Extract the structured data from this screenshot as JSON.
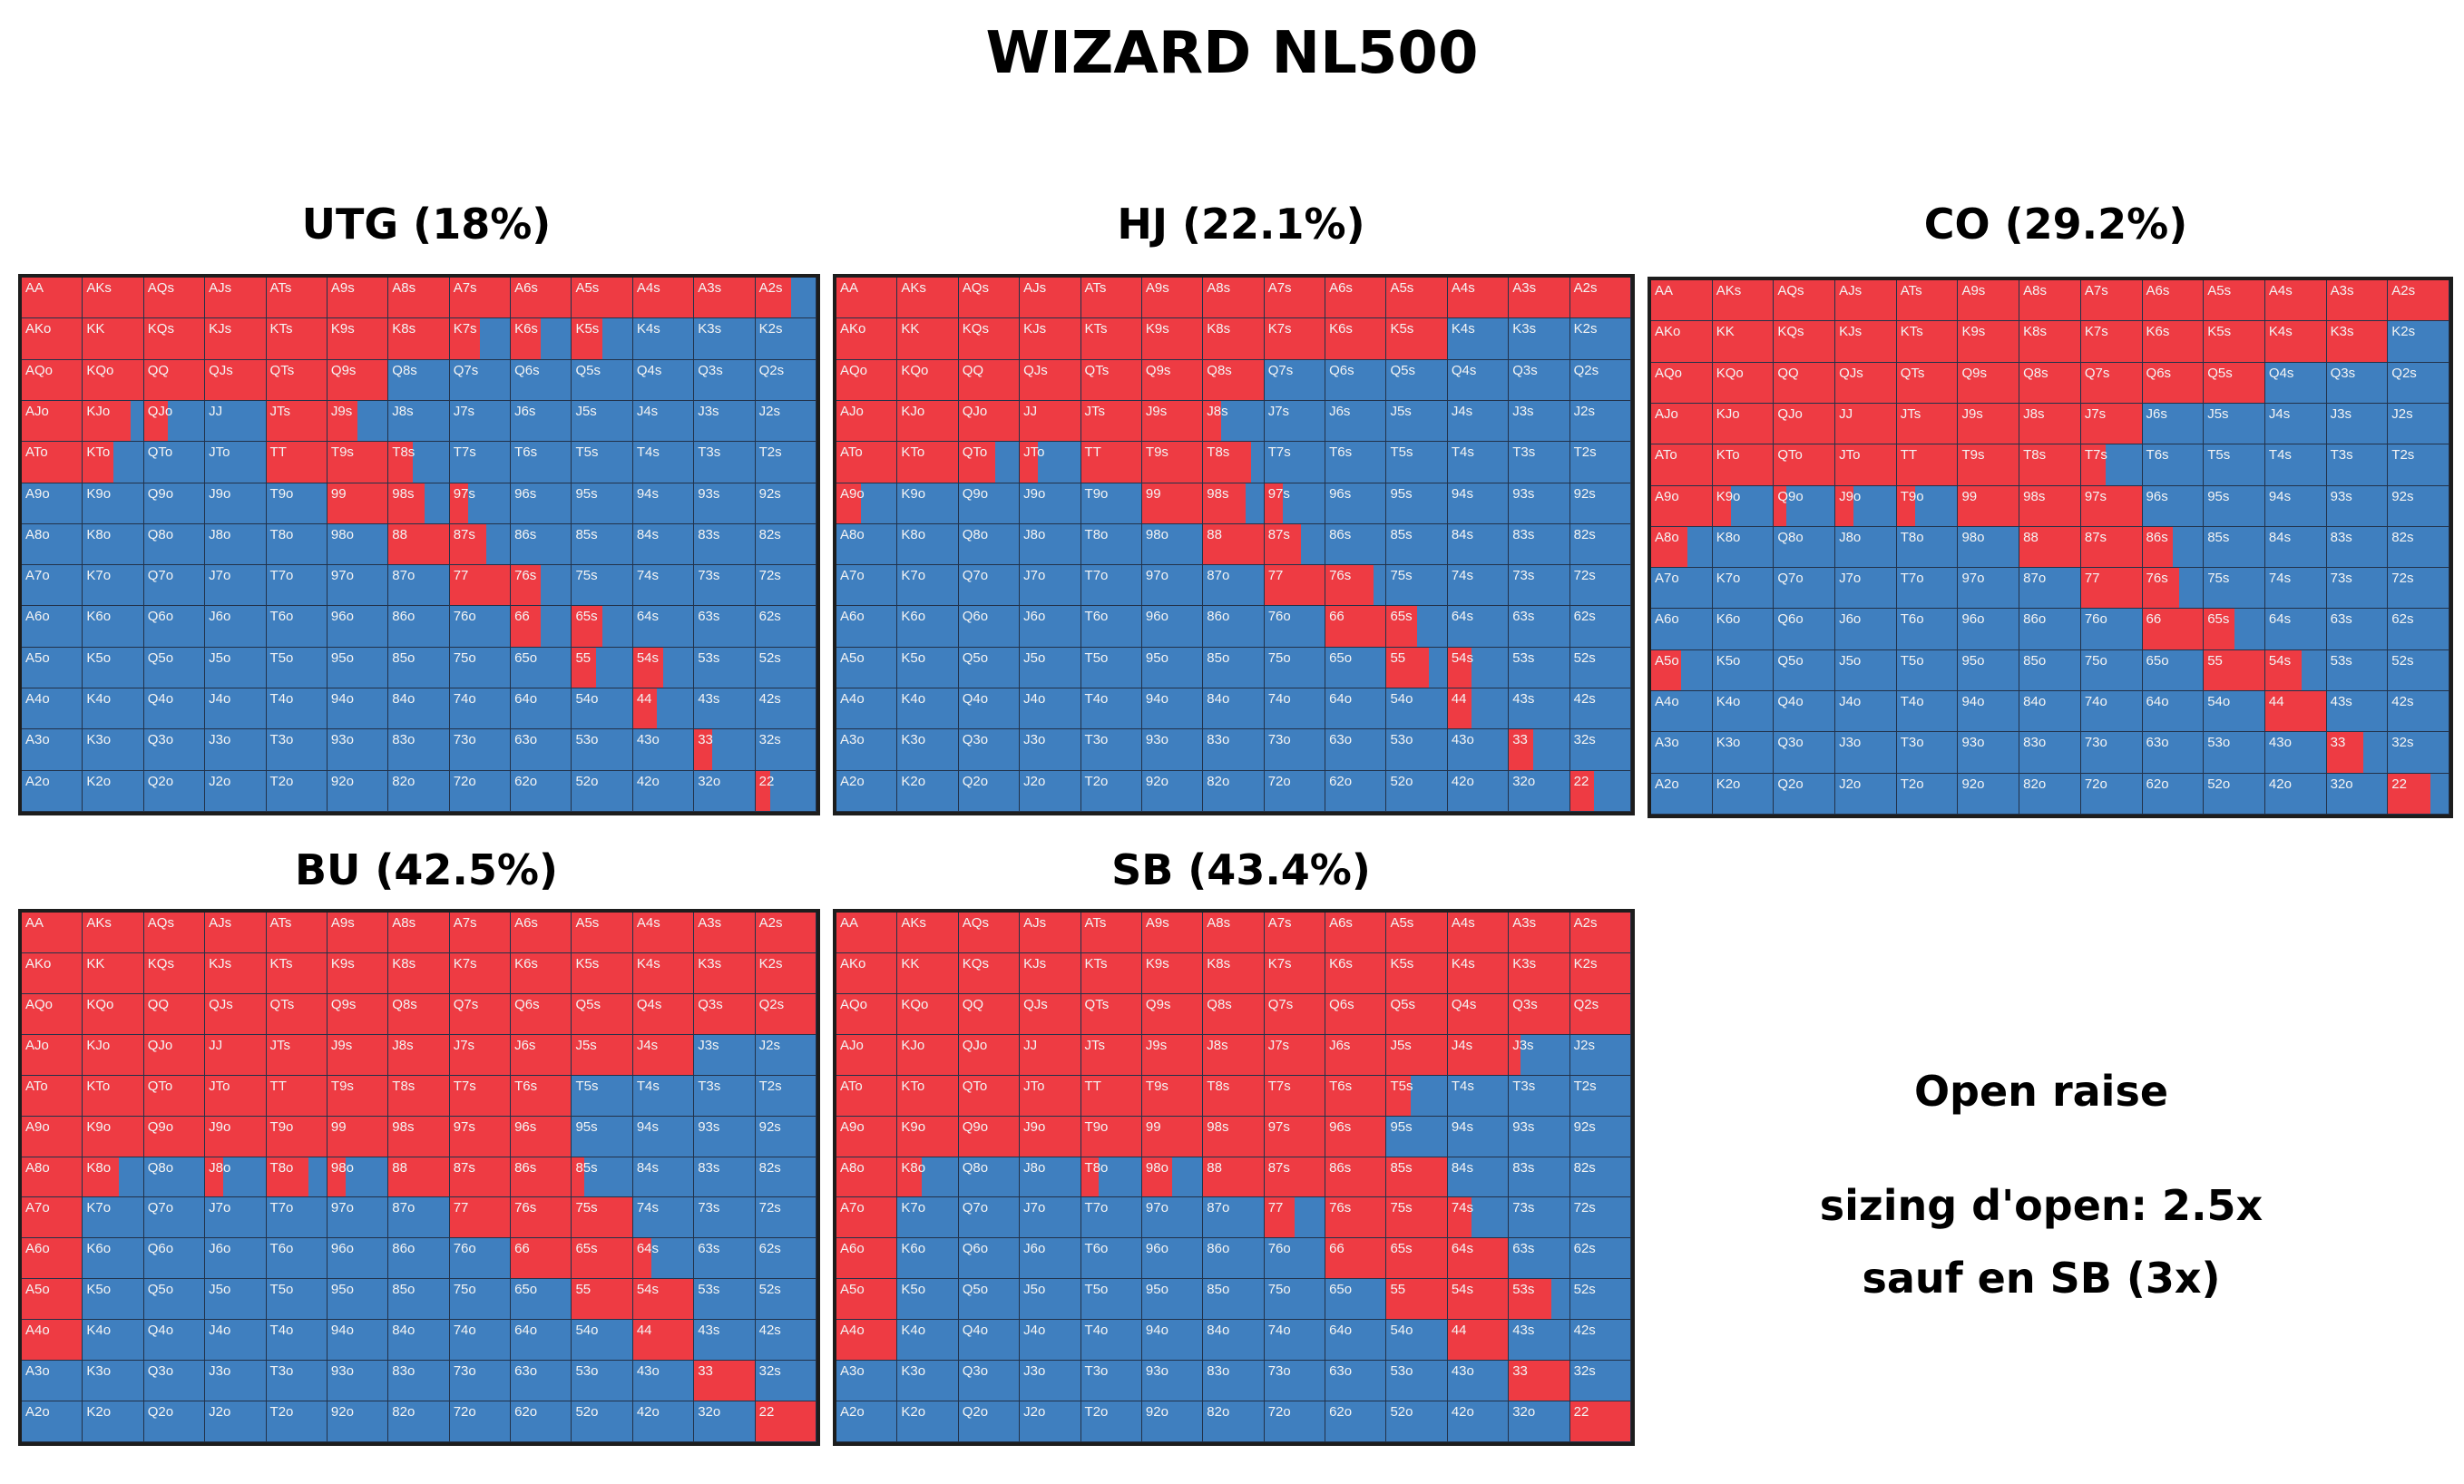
{
  "title": "WIZARD NL500",
  "colors": {
    "raise": "#ee3b43",
    "fold": "#3f7fbf",
    "border": "#1d1d1d"
  },
  "ranks": [
    "A",
    "K",
    "Q",
    "J",
    "T",
    "9",
    "8",
    "7",
    "6",
    "5",
    "4",
    "3",
    "2"
  ],
  "ranges": [
    {
      "label": "UTG (18%)",
      "raise_freq": [
        [
          1,
          1,
          1,
          1,
          1,
          1,
          1,
          1,
          1,
          1,
          1,
          1,
          0.6
        ],
        [
          1,
          1,
          1,
          1,
          1,
          1,
          1,
          0.5,
          0.5,
          0.5,
          0,
          0,
          0
        ],
        [
          1,
          1,
          1,
          1,
          1,
          1,
          0,
          0,
          0,
          0,
          0,
          0,
          0
        ],
        [
          1,
          0.8,
          0.4,
          0,
          1,
          0.5,
          0,
          0,
          0,
          0,
          0,
          0,
          0
        ],
        [
          1,
          0.5,
          0,
          0,
          1,
          1,
          0.4,
          0,
          0,
          0,
          0,
          0,
          0
        ],
        [
          0,
          0,
          0,
          0,
          0,
          1,
          0.6,
          0.3,
          0,
          0,
          0,
          0,
          0
        ],
        [
          0,
          0,
          0,
          0,
          0,
          0,
          1,
          0.6,
          0,
          0,
          0,
          0,
          0
        ],
        [
          0,
          0,
          0,
          0,
          0,
          0,
          0,
          1,
          0.5,
          0,
          0,
          0,
          0
        ],
        [
          0,
          0,
          0,
          0,
          0,
          0,
          0,
          0,
          0.5,
          0.5,
          0,
          0,
          0
        ],
        [
          0,
          0,
          0,
          0,
          0,
          0,
          0,
          0,
          0,
          0.4,
          0.5,
          0,
          0
        ],
        [
          0,
          0,
          0,
          0,
          0,
          0,
          0,
          0,
          0,
          0,
          0.4,
          0,
          0
        ],
        [
          0,
          0,
          0,
          0,
          0,
          0,
          0,
          0,
          0,
          0,
          0,
          0.3,
          0
        ],
        [
          0,
          0,
          0,
          0,
          0,
          0,
          0,
          0,
          0,
          0,
          0,
          0,
          0.25
        ]
      ]
    },
    {
      "label": "HJ (22.1%)",
      "raise_freq": [
        [
          1,
          1,
          1,
          1,
          1,
          1,
          1,
          1,
          1,
          1,
          1,
          1,
          1
        ],
        [
          1,
          1,
          1,
          1,
          1,
          1,
          1,
          1,
          1,
          1,
          0,
          0,
          0
        ],
        [
          1,
          1,
          1,
          1,
          1,
          1,
          1,
          0,
          0,
          0,
          0,
          0,
          0
        ],
        [
          1,
          1,
          1,
          1,
          1,
          1,
          0.3,
          0,
          0,
          0,
          0,
          0,
          0
        ],
        [
          1,
          1,
          0.6,
          0.3,
          1,
          1,
          0.8,
          0,
          0,
          0,
          0,
          0,
          0
        ],
        [
          0.4,
          0,
          0,
          0,
          0,
          1,
          0.7,
          0.3,
          0,
          0,
          0,
          0,
          0
        ],
        [
          0,
          0,
          0,
          0,
          0,
          0,
          1,
          0.6,
          0,
          0,
          0,
          0,
          0
        ],
        [
          0,
          0,
          0,
          0,
          0,
          0,
          0,
          1,
          0.8,
          0,
          0,
          0,
          0
        ],
        [
          0,
          0,
          0,
          0,
          0,
          0,
          0,
          0,
          1,
          0.5,
          0,
          0,
          0
        ],
        [
          0,
          0,
          0,
          0,
          0,
          0,
          0,
          0,
          0,
          0.7,
          0.4,
          0,
          0
        ],
        [
          0,
          0,
          0,
          0,
          0,
          0,
          0,
          0,
          0,
          0,
          0.4,
          0,
          0
        ],
        [
          0,
          0,
          0,
          0,
          0,
          0,
          0,
          0,
          0,
          0,
          0,
          0.4,
          0
        ],
        [
          0,
          0,
          0,
          0,
          0,
          0,
          0,
          0,
          0,
          0,
          0,
          0,
          0.4
        ]
      ]
    },
    {
      "label": "CO (29.2%)",
      "raise_freq": [
        [
          1,
          1,
          1,
          1,
          1,
          1,
          1,
          1,
          1,
          1,
          1,
          1,
          1
        ],
        [
          1,
          1,
          1,
          1,
          1,
          1,
          1,
          1,
          1,
          1,
          1,
          1,
          0
        ],
        [
          1,
          1,
          1,
          1,
          1,
          1,
          1,
          1,
          1,
          1,
          0,
          0,
          0
        ],
        [
          1,
          1,
          1,
          1,
          1,
          1,
          1,
          1,
          0,
          0,
          0,
          0,
          0
        ],
        [
          1,
          1,
          1,
          1,
          1,
          1,
          1,
          0.4,
          0,
          0,
          0,
          0,
          0
        ],
        [
          1,
          0.3,
          0.2,
          0.3,
          0.3,
          1,
          1,
          1,
          0,
          0,
          0,
          0,
          0
        ],
        [
          0.6,
          0,
          0,
          0,
          0,
          0,
          1,
          1,
          0.5,
          0,
          0,
          0,
          0
        ],
        [
          0,
          0,
          0,
          0,
          0,
          0,
          0,
          1,
          0.6,
          0,
          0,
          0,
          0
        ],
        [
          0,
          0,
          0,
          0,
          0,
          0,
          0,
          0,
          1,
          0.5,
          0,
          0,
          0
        ],
        [
          0.5,
          0,
          0,
          0,
          0,
          0,
          0,
          0,
          0,
          1,
          0.6,
          0,
          0
        ],
        [
          0,
          0,
          0,
          0,
          0,
          0,
          0,
          0,
          0,
          0,
          1,
          0,
          0
        ],
        [
          0,
          0,
          0,
          0,
          0,
          0,
          0,
          0,
          0,
          0,
          0,
          0.6,
          0
        ],
        [
          0,
          0,
          0,
          0,
          0,
          0,
          0,
          0,
          0,
          0,
          0,
          0,
          0.7
        ]
      ]
    },
    {
      "label": "BU (42.5%)",
      "raise_freq": [
        [
          1,
          1,
          1,
          1,
          1,
          1,
          1,
          1,
          1,
          1,
          1,
          1,
          1
        ],
        [
          1,
          1,
          1,
          1,
          1,
          1,
          1,
          1,
          1,
          1,
          1,
          1,
          1
        ],
        [
          1,
          1,
          1,
          1,
          1,
          1,
          1,
          1,
          1,
          1,
          1,
          1,
          1
        ],
        [
          1,
          1,
          1,
          1,
          1,
          1,
          1,
          1,
          1,
          1,
          1,
          0,
          0
        ],
        [
          1,
          1,
          1,
          1,
          1,
          1,
          1,
          1,
          1,
          0,
          0,
          0,
          0
        ],
        [
          1,
          1,
          1,
          1,
          1,
          1,
          1,
          1,
          1,
          0,
          0,
          0,
          0
        ],
        [
          1,
          0.6,
          0,
          0.3,
          0.7,
          0.3,
          1,
          1,
          1,
          0.2,
          0,
          0,
          0
        ],
        [
          1,
          0,
          0,
          0,
          0,
          0,
          0,
          1,
          1,
          1,
          0,
          0,
          0
        ],
        [
          1,
          0,
          0,
          0,
          0,
          0,
          0,
          0,
          1,
          1,
          0.3,
          0,
          0
        ],
        [
          1,
          0,
          0,
          0,
          0,
          0,
          0,
          0,
          0,
          1,
          1,
          0,
          0
        ],
        [
          1,
          0,
          0,
          0,
          0,
          0,
          0,
          0,
          0,
          0,
          1,
          0,
          0
        ],
        [
          0,
          0,
          0,
          0,
          0,
          0,
          0,
          0,
          0,
          0,
          0,
          1,
          0
        ],
        [
          0,
          0,
          0,
          0,
          0,
          0,
          0,
          0,
          0,
          0,
          0,
          0,
          1
        ]
      ]
    },
    {
      "label": "SB (43.4%)",
      "raise_freq": [
        [
          1,
          1,
          1,
          1,
          1,
          1,
          1,
          1,
          1,
          1,
          1,
          1,
          1
        ],
        [
          1,
          1,
          1,
          1,
          1,
          1,
          1,
          1,
          1,
          1,
          1,
          1,
          1
        ],
        [
          1,
          1,
          1,
          1,
          1,
          1,
          1,
          1,
          1,
          1,
          1,
          1,
          1
        ],
        [
          1,
          1,
          1,
          1,
          1,
          1,
          1,
          1,
          1,
          1,
          1,
          0.2,
          0
        ],
        [
          1,
          1,
          1,
          1,
          1,
          1,
          1,
          1,
          1,
          0.4,
          0,
          0,
          0
        ],
        [
          1,
          1,
          1,
          1,
          1,
          1,
          1,
          1,
          1,
          0,
          0,
          0,
          0
        ],
        [
          1,
          0.4,
          0,
          0,
          0.3,
          0.5,
          1,
          1,
          1,
          1,
          0,
          0,
          0
        ],
        [
          1,
          0,
          0,
          0,
          0,
          0,
          0,
          0.5,
          1,
          1,
          0.4,
          0,
          0
        ],
        [
          1,
          0,
          0,
          0,
          0,
          0,
          0,
          0,
          1,
          1,
          1,
          0,
          0
        ],
        [
          1,
          0,
          0,
          0,
          0,
          0,
          0,
          0,
          0,
          1,
          1,
          0.7,
          0
        ],
        [
          1,
          0,
          0,
          0,
          0,
          0,
          0,
          0,
          0,
          0,
          1,
          0,
          0
        ],
        [
          0,
          0,
          0,
          0,
          0,
          0,
          0,
          0,
          0,
          0,
          0,
          1,
          0
        ],
        [
          0,
          0,
          0,
          0,
          0,
          0,
          0,
          0,
          0,
          0,
          0,
          0,
          1
        ]
      ]
    }
  ],
  "legend": {
    "heading": "Open raise",
    "line1": "sizing d'open: 2.5x",
    "line2": "sauf en SB (3x)"
  }
}
